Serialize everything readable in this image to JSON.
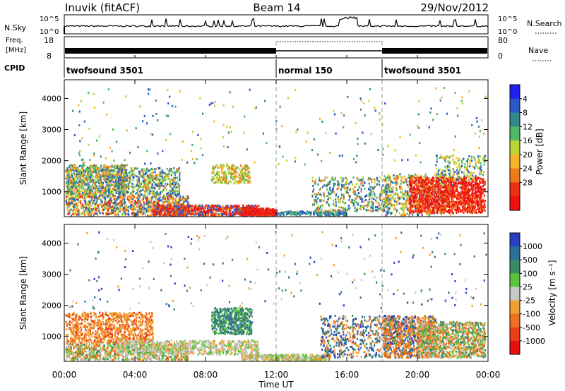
{
  "header": {
    "station": "Inuvik (fitACF)",
    "beam": "Beam 14",
    "date": "29/Nov/2012"
  },
  "panels": {
    "nsky": {
      "label": "N.Sky",
      "ticks": [
        "10^5",
        "10^0"
      ],
      "right_label": "N.Search"
    },
    "freq": {
      "label_line1": "Freq.",
      "label_line2": "[MHz]",
      "ticks": [
        "18",
        "8"
      ],
      "right_ticks": [
        "80",
        "0"
      ],
      "right_label": "Nave"
    },
    "cpid": {
      "label": "CPID",
      "segments": [
        {
          "name": "twofsound 3501",
          "start": 0,
          "end": 12
        },
        {
          "name": "normal 150",
          "start": 12,
          "end": 18
        },
        {
          "name": "twofsound 3501",
          "start": 18,
          "end": 24
        }
      ]
    }
  },
  "chart_data": [
    {
      "type": "heatmap",
      "name": "power",
      "ylabel": "Slant Range [km]",
      "yticks": [
        "1000",
        "2000",
        "3000",
        "4000"
      ],
      "ylim": [
        200,
        4600
      ],
      "xlim": [
        0,
        24
      ],
      "colorbar": {
        "label": "Power [dB]",
        "ticks": [
          "4",
          "8",
          "12",
          "16",
          "20",
          "24",
          "28"
        ],
        "colors": [
          "#1f1ff0",
          "#2859c8",
          "#33888a",
          "#4fb866",
          "#b7d636",
          "#f5b428",
          "#ef7a1e",
          "#ea2f12",
          "#f01010"
        ]
      }
    },
    {
      "type": "heatmap",
      "name": "velocity",
      "ylabel": "Slant Range [km]",
      "yticks": [
        "1000",
        "2000",
        "3000",
        "4000"
      ],
      "ylim": [
        200,
        4600
      ],
      "xlim": [
        0,
        24
      ],
      "colorbar": {
        "label": "Velocity [m s⁻¹]",
        "ticks": [
          "1000",
          "500",
          "100",
          "25",
          "-25",
          "-100",
          "-500",
          "-1000"
        ],
        "colors": [
          "#2a3ec0",
          "#2c6f9a",
          "#3a8a66",
          "#5cc43a",
          "#c8c8c8",
          "#f0a030",
          "#ee7020",
          "#ea4018",
          "#e81010"
        ]
      }
    }
  ],
  "xaxis": {
    "label": "Time UT",
    "ticks": [
      "00:00",
      "04:00",
      "08:00",
      "12:00",
      "16:00",
      "20:00",
      "00:00"
    ]
  }
}
